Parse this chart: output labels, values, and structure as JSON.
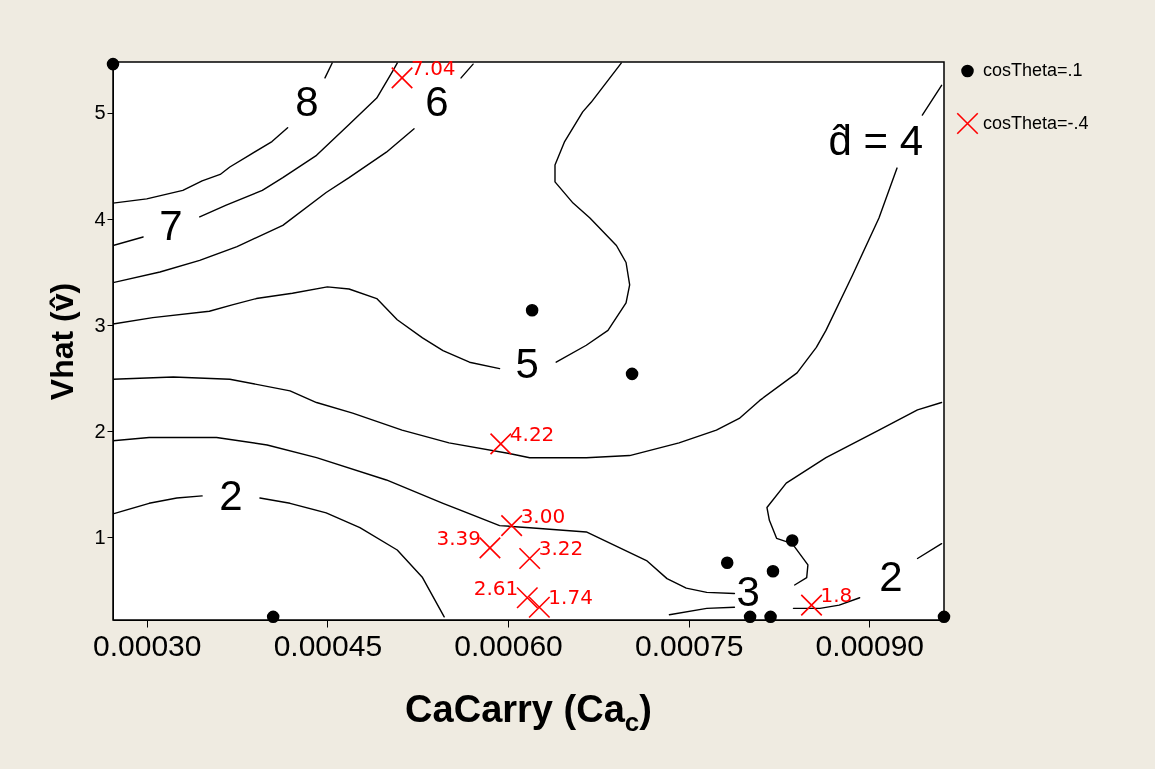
{
  "chart_data": {
    "type": "scatter",
    "xlabel": "CaCarry (Ca$_{c}$)",
    "ylabel": "Vhat (v̂)",
    "xlim": [
      0.000272,
      0.000962
    ],
    "ylim": [
      0.22,
      5.48
    ],
    "xticks": [
      {
        "value": 0.0003,
        "label": "0.00030"
      },
      {
        "value": 0.00045,
        "label": "0.00045"
      },
      {
        "value": 0.0006,
        "label": "0.00060"
      },
      {
        "value": 0.00075,
        "label": "0.00075"
      },
      {
        "value": 0.0009,
        "label": "0.00090"
      }
    ],
    "yticks": [
      1,
      2,
      3,
      4,
      5
    ],
    "grid": false,
    "legend": "right",
    "annotations": [
      {
        "text": "7.04",
        "x": 0.000512,
        "y": 5.33
      },
      {
        "text": "4.22",
        "x": 0.000594,
        "y": 1.88
      },
      {
        "text": "3.00",
        "x": 0.000603,
        "y": 1.11
      },
      {
        "text": "3.39",
        "x": 0.000585,
        "y": 0.9
      },
      {
        "text": "3.22",
        "x": 0.000618,
        "y": 0.8
      },
      {
        "text": "2.61",
        "x": 0.000616,
        "y": 0.43
      },
      {
        "text": "1.74",
        "x": 0.000626,
        "y": 0.34
      },
      {
        "text": "1.8",
        "x": 0.000852,
        "y": 0.36
      }
    ],
    "series": [
      {
        "name": "cosTheta=.1",
        "color": "#000000",
        "marker": "circle",
        "x": [
          0.000272,
          0.000405,
          0.00062,
          0.000703,
          0.000782,
          0.000801,
          0.000818,
          0.00082,
          0.000836,
          0.000962
        ],
        "values": [
          5.46,
          0.25,
          3.14,
          2.54,
          0.76,
          0.25,
          0.25,
          0.68,
          0.97,
          0.25
        ]
      },
      {
        "name": "cosTheta=-.4",
        "color": "#ff0000",
        "marker": "cross",
        "x": [
          0.000512,
          0.000594,
          0.000603,
          0.000585,
          0.000618,
          0.000616,
          0.000626,
          0.000852
        ],
        "values": [
          5.33,
          1.88,
          1.11,
          0.9,
          0.8,
          0.43,
          0.34,
          0.36
        ]
      },
      {
        "type": "line",
        "name": "8",
        "color": "#000000",
        "x": [
          0.000272,
          0.0003,
          0.00033,
          0.000346,
          0.000361,
          0.000369,
          0.000385,
          0.000404,
          0.000417,
          0.000433,
          0.000448,
          0.000454
        ],
        "values": [
          4.15,
          4.19,
          4.27,
          4.36,
          4.42,
          4.49,
          4.6,
          4.73,
          4.86,
          null,
          5.33,
          5.47
        ]
      },
      {
        "type": "line",
        "name": "7",
        "color": "#000000",
        "x": [
          0.000272,
          0.000297,
          0.00032,
          0.000344,
          0.000366,
          0.000396,
          0.000413,
          0.000441,
          0.000468,
          0.000491,
          0.000504,
          0.000508
        ],
        "values": [
          3.75,
          3.83,
          null,
          4.02,
          4.13,
          4.27,
          4.39,
          4.6,
          4.89,
          5.14,
          5.39,
          5.47
        ]
      },
      {
        "type": "line",
        "name": "6",
        "color": "#000000",
        "x": [
          0.000272,
          0.000311,
          0.000344,
          0.000375,
          0.000413,
          0.000449,
          0.000468,
          0.000499,
          0.000522,
          0.000541,
          0.000561,
          0.000571
        ],
        "values": [
          3.4,
          3.5,
          3.61,
          3.74,
          3.94,
          4.25,
          4.39,
          4.63,
          4.85,
          null,
          5.33,
          5.46
        ]
      },
      {
        "type": "line",
        "name": "5",
        "color": "#000000",
        "x": [
          0.000272,
          0.000305,
          0.000352,
          0.000371,
          0.000391,
          0.000421,
          0.00045,
          0.000468,
          0.000491,
          0.000508,
          0.000529,
          0.000546,
          0.000568,
          0.000593,
          0.000616,
          0.00064,
          0.000665,
          0.000683,
          0.000698,
          0.000701,
          0.000698,
          0.00069,
          0.000668,
          0.000654,
          0.000639,
          0.000639,
          0.000647,
          0.000662,
          0.000669,
          0.000694
        ],
        "values": [
          3.01,
          3.07,
          3.13,
          3.19,
          3.25,
          3.3,
          3.36,
          3.34,
          3.25,
          3.05,
          2.88,
          2.76,
          2.65,
          2.59,
          null,
          2.65,
          2.81,
          2.95,
          3.21,
          3.38,
          3.59,
          3.75,
          4.01,
          4.15,
          4.35,
          4.51,
          4.73,
          5.01,
          5.1,
          5.47
        ]
      },
      {
        "type": "line",
        "name": "d̂ = 4",
        "color": "#000000",
        "x": [
          0.00096,
          0.000944,
          0.000933,
          0.000923,
          0.000908,
          0.000886,
          0.000864,
          0.000856,
          0.00084,
          0.000809,
          0.000792,
          0.000773,
          0.000742,
          0.000701,
          0.000665,
          0.000618,
          0.000601,
          0.000551,
          0.000512,
          0.000471,
          0.000441,
          0.000419,
          0.000369,
          0.000322,
          0.000272
        ],
        "values": [
          5.26,
          4.98,
          null,
          4.48,
          4.01,
          3.47,
          2.95,
          2.79,
          2.55,
          2.29,
          2.12,
          2.01,
          1.89,
          1.77,
          1.75,
          1.75,
          1.79,
          1.89,
          2.01,
          2.17,
          2.27,
          2.38,
          2.49,
          2.51,
          2.49
        ]
      },
      {
        "type": "line",
        "name": "3",
        "color": "#000000",
        "x": [
          0.000272,
          0.000302,
          0.000358,
          0.0004,
          0.000441,
          0.000499,
          0.000546,
          0.000593,
          0.000618,
          0.000665,
          0.000715,
          0.000732,
          0.000748,
          0.000765,
          0.000788
        ],
        "values": [
          1.91,
          1.94,
          1.94,
          1.87,
          1.75,
          1.54,
          1.32,
          1.11,
          1.09,
          1.05,
          0.78,
          0.61,
          0.52,
          0.48,
          0.47
        ]
      },
      {
        "type": "line",
        "color": "#000000",
        "x": [
          0.000788,
          0.000765,
          0.000734
        ],
        "values": [
          0.34,
          0.33,
          0.27
        ]
      },
      {
        "type": "line",
        "name": "2",
        "color": "#000000",
        "x": [
          0.000837,
          0.000859,
          0.000875,
          0.000892,
          0.000916,
          0.00094,
          0.00096
        ],
        "values": [
          0.33,
          0.33,
          0.36,
          0.43,
          null,
          0.8,
          0.94
        ]
      },
      {
        "type": "line",
        "color": "#000000",
        "x": [
          0.00096,
          0.00094,
          0.000908,
          0.000864,
          0.000831,
          0.000815,
          0.000817,
          0.000823,
          0.000836,
          0.000849,
          0.000848,
          0.000838
        ],
        "values": [
          2.27,
          2.2,
          2.01,
          1.75,
          1.51,
          1.28,
          1.16,
          0.99,
          0.94,
          0.74,
          0.62,
          0.55
        ]
      },
      {
        "type": "line",
        "name": "2",
        "color": "#000000",
        "x": [
          0.000272,
          0.000302,
          0.000325,
          0.000346,
          0.00037,
          0.000394,
          0.000419,
          0.000449,
          0.000477,
          0.000508,
          0.000529,
          0.000547
        ],
        "values": [
          1.22,
          1.32,
          1.37,
          1.39,
          null,
          1.37,
          1.32,
          1.23,
          1.09,
          0.88,
          0.62,
          0.25
        ]
      }
    ]
  }
}
